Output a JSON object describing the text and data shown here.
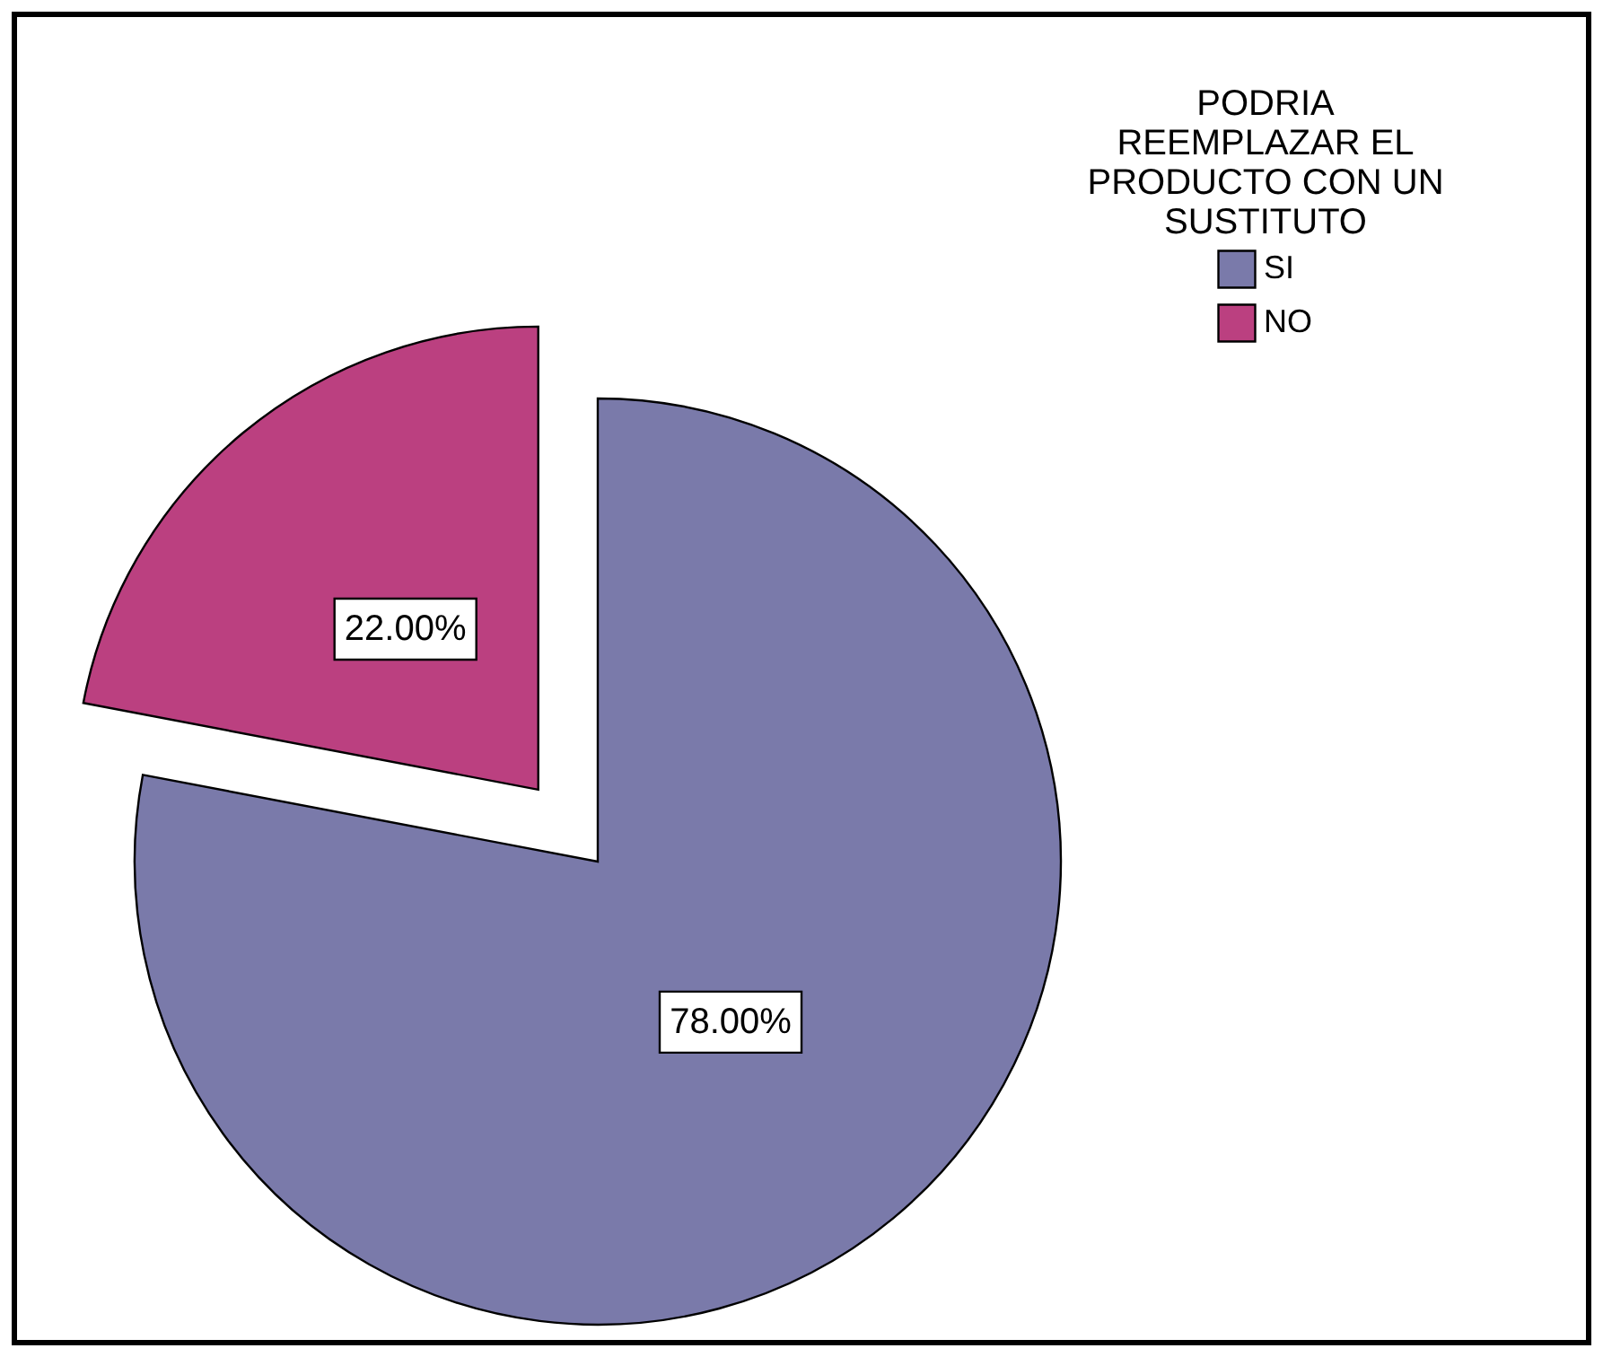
{
  "chart_data": {
    "type": "pie",
    "legend_title": "PODRIA REEMPLAZAR EL PRODUCTO CON UN SUSTITUTO",
    "categories": [
      "SI",
      "NO"
    ],
    "values": [
      78,
      22
    ],
    "colors": [
      "#7a7aaa",
      "#bb4080"
    ],
    "value_labels": [
      "78.00%",
      "22.00%"
    ],
    "legend": "top right"
  }
}
